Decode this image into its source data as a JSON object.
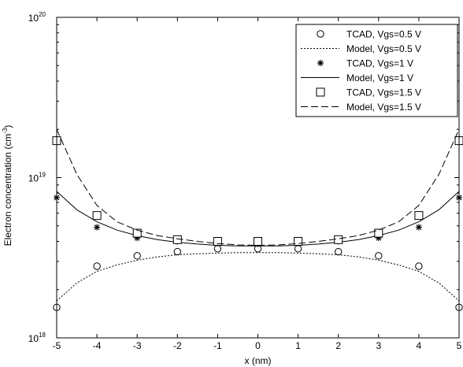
{
  "chart_data": {
    "type": "line",
    "xlabel": "x (nm)",
    "ylabel_main": "Electron concentration (cm",
    "ylabel_sup": "-3",
    "ylabel_close": ")",
    "yscale": "log",
    "xlim": [
      -5,
      5
    ],
    "ylim": [
      1e+18,
      1e+20
    ],
    "xticks": [
      "-5",
      "-4",
      "-3",
      "-2",
      "-1",
      "0",
      "1",
      "2",
      "3",
      "4",
      "5"
    ],
    "yticks": [
      {
        "base": "10",
        "exp": "18"
      },
      {
        "base": "10",
        "exp": "19"
      },
      {
        "base": "10",
        "exp": "20"
      }
    ],
    "legend_position": "top-right",
    "grid": false,
    "series": [
      {
        "name": "TCAD, Vgs=0.5 V",
        "kind": "marker",
        "marker": "circle",
        "x": [
          -5,
          -4,
          -3,
          -2,
          -1,
          0,
          1,
          2,
          3,
          4,
          5
        ],
        "y": [
          1.55e+18,
          2.8e+18,
          3.25e+18,
          3.45e+18,
          3.6e+18,
          3.6e+18,
          3.6e+18,
          3.45e+18,
          3.25e+18,
          2.8e+18,
          1.55e+18
        ]
      },
      {
        "name": "Model, Vgs=0.5 V",
        "kind": "line",
        "dash": "dotted",
        "x": [
          -5,
          -4.5,
          -4,
          -3.5,
          -3,
          -2.5,
          -2,
          -1.5,
          -1,
          -0.5,
          0,
          0.5,
          1,
          1.5,
          2,
          2.5,
          3,
          3.5,
          4,
          4.5,
          5
        ],
        "y": [
          1.7e+18,
          2.2e+18,
          2.6e+18,
          2.85e+18,
          3.05e+18,
          3.2e+18,
          3.3e+18,
          3.35e+18,
          3.38e+18,
          3.4e+18,
          3.4e+18,
          3.4e+18,
          3.38e+18,
          3.35e+18,
          3.3e+18,
          3.2e+18,
          3.05e+18,
          2.85e+18,
          2.6e+18,
          2.2e+18,
          1.7e+18
        ]
      },
      {
        "name": "TCAD, Vgs=1 V",
        "kind": "marker",
        "marker": "asterisk",
        "x": [
          -5,
          -4,
          -3,
          -2,
          -1,
          0,
          1,
          2,
          3,
          4,
          5
        ],
        "y": [
          7.5e+18,
          4.9e+18,
          4.2e+18,
          4e+18,
          3.9e+18,
          3.85e+18,
          3.9e+18,
          4e+18,
          4.2e+18,
          4.9e+18,
          7.5e+18
        ]
      },
      {
        "name": "Model, Vgs=1 V",
        "kind": "line",
        "dash": "solid",
        "x": [
          -5,
          -4.5,
          -4,
          -3.5,
          -3,
          -2.5,
          -2,
          -1.5,
          -1,
          -0.5,
          0,
          0.5,
          1,
          1.5,
          2,
          2.5,
          3,
          3.5,
          4,
          4.5,
          5
        ],
        "y": [
          8.2e+18,
          6.3e+18,
          5.3e+18,
          4.7e+18,
          4.35e+18,
          4.1e+18,
          3.95e+18,
          3.85e+18,
          3.78e+18,
          3.75e+18,
          3.75e+18,
          3.75e+18,
          3.78e+18,
          3.85e+18,
          3.95e+18,
          4.1e+18,
          4.35e+18,
          4.7e+18,
          5.3e+18,
          6.3e+18,
          8.2e+18
        ]
      },
      {
        "name": "TCAD, Vgs=1.5 V",
        "kind": "marker",
        "marker": "square",
        "x": [
          -5,
          -4,
          -3,
          -2,
          -1,
          0,
          1,
          2,
          3,
          4,
          5
        ],
        "y": [
          1.7e+19,
          5.8e+18,
          4.5e+18,
          4.1e+18,
          4e+18,
          4e+18,
          4e+18,
          4.1e+18,
          4.5e+18,
          5.8e+18,
          1.7e+19
        ]
      },
      {
        "name": "Model, Vgs=1.5 V",
        "kind": "line",
        "dash": "dashed",
        "x": [
          -5,
          -4.5,
          -4,
          -3.5,
          -3,
          -2.5,
          -2,
          -1.5,
          -1,
          -0.5,
          0,
          0.5,
          1,
          1.5,
          2,
          2.5,
          3,
          3.5,
          4,
          4.5,
          5
        ],
        "y": [
          2e+19,
          1.05e+19,
          6.7e+18,
          5.3e+18,
          4.7e+18,
          4.35e+18,
          4.15e+18,
          4e+18,
          3.88e+18,
          3.8e+18,
          3.78e+18,
          3.8e+18,
          3.88e+18,
          4e+18,
          4.15e+18,
          4.35e+18,
          4.7e+18,
          5.3e+18,
          6.7e+18,
          1.05e+19,
          2e+19
        ]
      }
    ]
  }
}
